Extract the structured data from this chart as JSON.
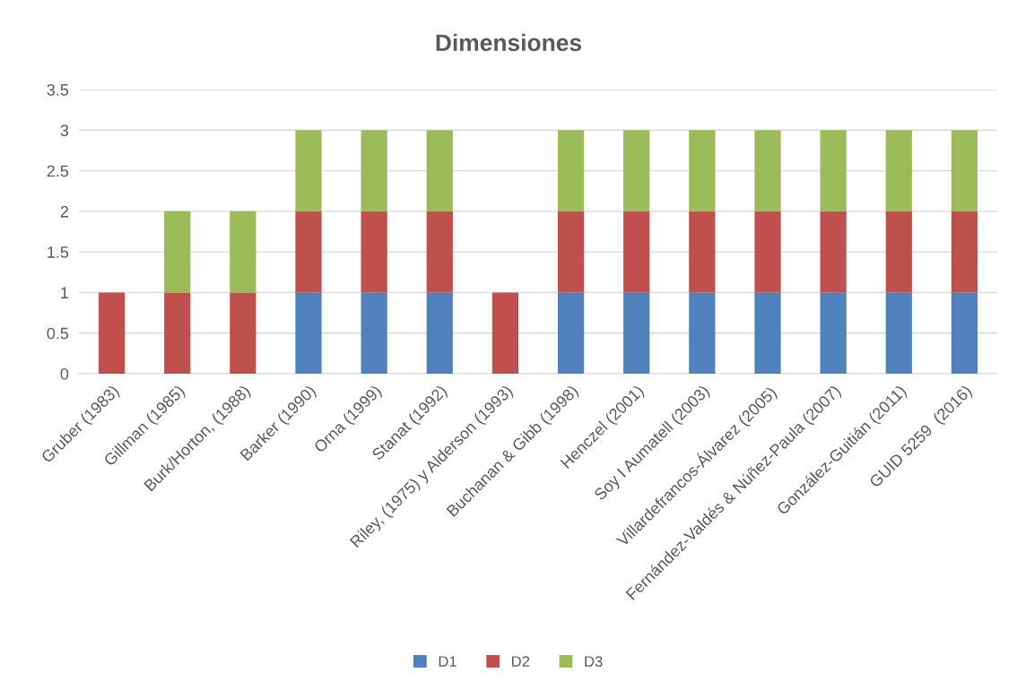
{
  "chart_data": {
    "type": "bar",
    "title": "Dimensiones",
    "stacked": true,
    "categories": [
      "Gruber (1983)",
      "Gillman (1985)",
      "Burk/Horton, (1988)",
      "Barker (1990)",
      "Orna (1999)",
      "Stanat (1992)",
      "Riley, (1975) y Alderson (1993)",
      "Buchanan & Gibb (1998)",
      "Henczel (2001)",
      "Soy I Aumatell (2003)",
      "Villardefrancos-Álvarez (2005)",
      "Fernández-Valdés & Núñez-Paula (2007)",
      "González-Guitián (2011)",
      "GUID 5259  (2016)"
    ],
    "series": [
      {
        "name": "D1",
        "color": "#4f81bd",
        "values": [
          0,
          0,
          0,
          1,
          1,
          1,
          0,
          1,
          1,
          1,
          1,
          1,
          1,
          1
        ]
      },
      {
        "name": "D2",
        "color": "#c0504d",
        "values": [
          1,
          1,
          1,
          1,
          1,
          1,
          1,
          1,
          1,
          1,
          1,
          1,
          1,
          1
        ]
      },
      {
        "name": "D3",
        "color": "#9bbb59",
        "values": [
          0,
          1,
          1,
          1,
          1,
          1,
          0,
          1,
          1,
          1,
          1,
          1,
          1,
          1
        ]
      }
    ],
    "ylim": [
      0,
      3.5
    ],
    "yticks": [
      0,
      0.5,
      1,
      1.5,
      2,
      2.5,
      3,
      3.5
    ],
    "grid": "y",
    "legend": "bottom"
  }
}
